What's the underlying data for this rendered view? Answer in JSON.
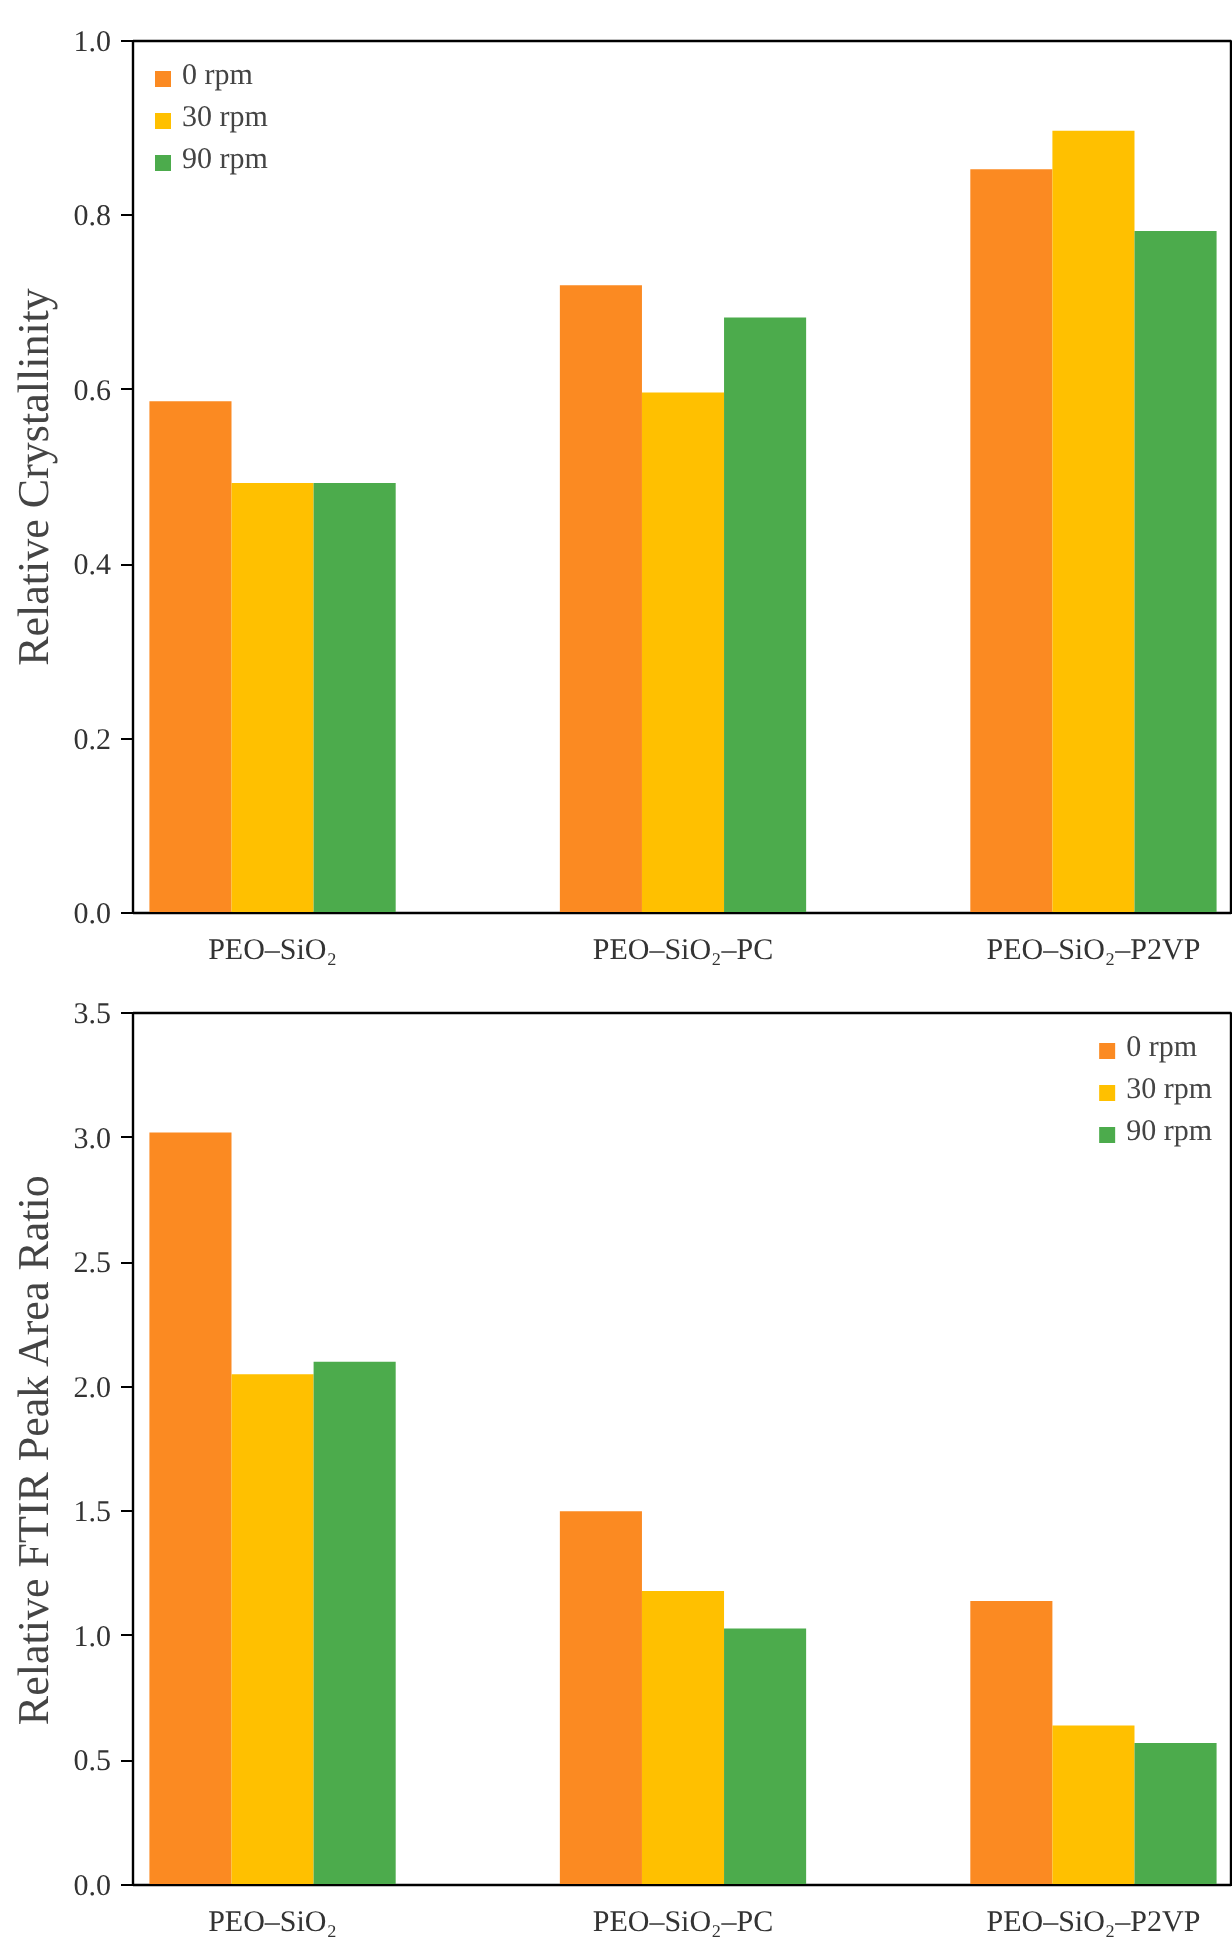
{
  "chart_data": [
    {
      "type": "bar",
      "ylabel": "Relative Crystallinity",
      "categories": [
        "PEO–SiO₂",
        "PEO–SiO₂–PC",
        "PEO–SiO₂–P2VP"
      ],
      "series": [
        {
          "name": "0 rpm",
          "color": "#fb8a22",
          "values": [
            0.587,
            0.72,
            0.853
          ]
        },
        {
          "name": "30 rpm",
          "color": "#ffc000",
          "values": [
            0.493,
            0.597,
            0.897
          ]
        },
        {
          "name": "90 rpm",
          "color": "#4cab4c",
          "values": [
            0.493,
            0.683,
            0.782
          ]
        }
      ],
      "ylim": [
        0,
        1.0
      ],
      "yticks": [
        {
          "value": 0,
          "label": "0.0"
        },
        0.2,
        0.4,
        0.6,
        0.8,
        {
          "value": 1.0,
          "label": "1.0"
        }
      ],
      "grid": false,
      "legend": "top left"
    },
    {
      "type": "bar",
      "ylabel": "Relative FTIR Peak Area Ratio",
      "categories": [
        "PEO–SiO₂",
        "PEO–SiO₂–PC",
        "PEO–SiO₂–P2VP"
      ],
      "series": [
        {
          "name": "0 rpm",
          "color": "#fb8a22",
          "values": [
            3.02,
            1.5,
            1.14
          ]
        },
        {
          "name": "30 rpm",
          "color": "#ffc000",
          "values": [
            2.05,
            1.18,
            0.64
          ]
        },
        {
          "name": "90 rpm",
          "color": "#4cab4c",
          "values": [
            2.1,
            1.03,
            0.57
          ]
        }
      ],
      "ylim": [
        0,
        3.5
      ],
      "yticks": [
        {
          "value": 0,
          "label": "0.0"
        },
        0.5,
        {
          "value": 1,
          "label": "1.0"
        },
        1.5,
        {
          "value": 2,
          "label": "2.0"
        },
        2.5,
        {
          "value": 3,
          "label": "3.0"
        },
        3.5
      ],
      "grid": false,
      "legend": "top right"
    }
  ]
}
